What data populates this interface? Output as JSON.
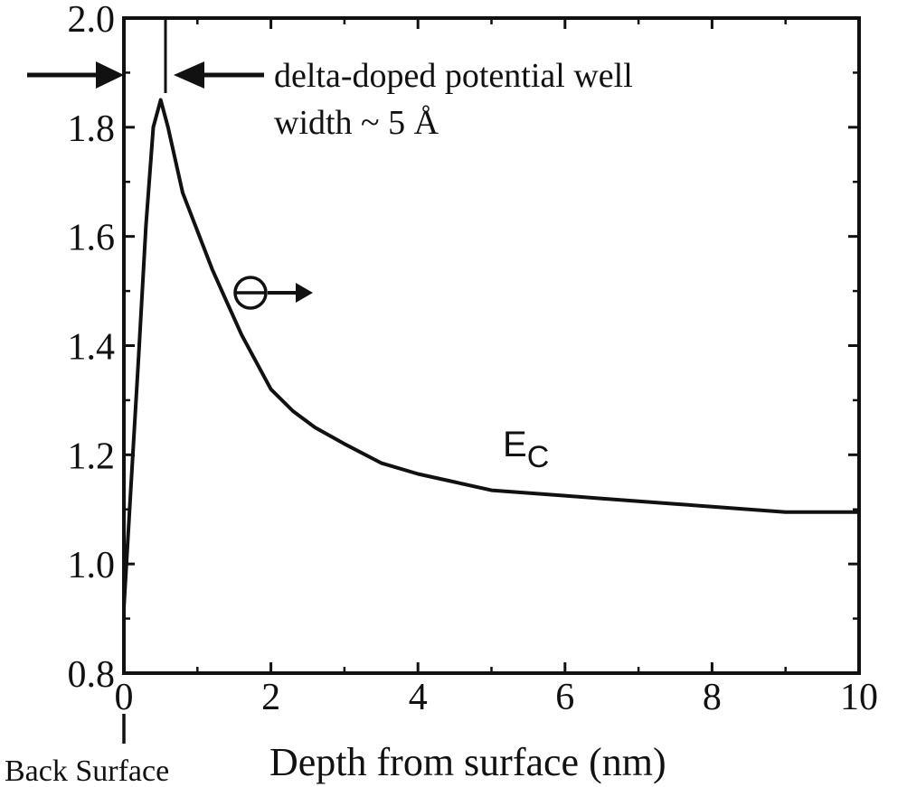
{
  "chart_data": {
    "type": "line",
    "title": "",
    "xlabel": "Depth from surface (nm)",
    "ylabel": "",
    "xlim": [
      0,
      10
    ],
    "ylim": [
      0.8,
      2.0
    ],
    "x_ticks": [
      "0",
      "2",
      "4",
      "6",
      "8",
      "10"
    ],
    "y_ticks": [
      "0.8",
      "1.0",
      "1.2",
      "1.4",
      "1.6",
      "1.8",
      "2.0"
    ],
    "grid": false,
    "line_color": "#111111",
    "series": [
      {
        "name": "",
        "x": [
          0,
          0.1,
          0.2,
          0.3,
          0.4,
          0.5,
          0.6,
          0.7,
          0.8,
          1.0,
          1.2,
          1.4,
          1.6,
          1.8,
          2.0,
          2.3,
          2.6,
          3.0,
          3.5,
          4.0,
          4.5,
          5.0,
          5.5,
          6.0,
          6.5,
          7.0,
          7.5,
          8.0,
          8.5,
          9.0,
          9.5,
          10.0
        ],
        "y": [
          0.92,
          1.15,
          1.38,
          1.62,
          1.8,
          1.85,
          1.8,
          1.74,
          1.68,
          1.61,
          1.54,
          1.48,
          1.42,
          1.37,
          1.32,
          1.28,
          1.25,
          1.22,
          1.185,
          1.165,
          1.15,
          1.135,
          1.13,
          1.125,
          1.12,
          1.115,
          1.11,
          1.105,
          1.1,
          1.095,
          1.095,
          1.095
        ]
      }
    ],
    "annotations": {
      "well_label_line1": "delta-doped potential well",
      "well_label_line2": "width  ~ 5 Å",
      "electron_symbol": "e",
      "ec_main": "E",
      "ec_sub": "C",
      "back_surface": "Back Surface"
    }
  }
}
